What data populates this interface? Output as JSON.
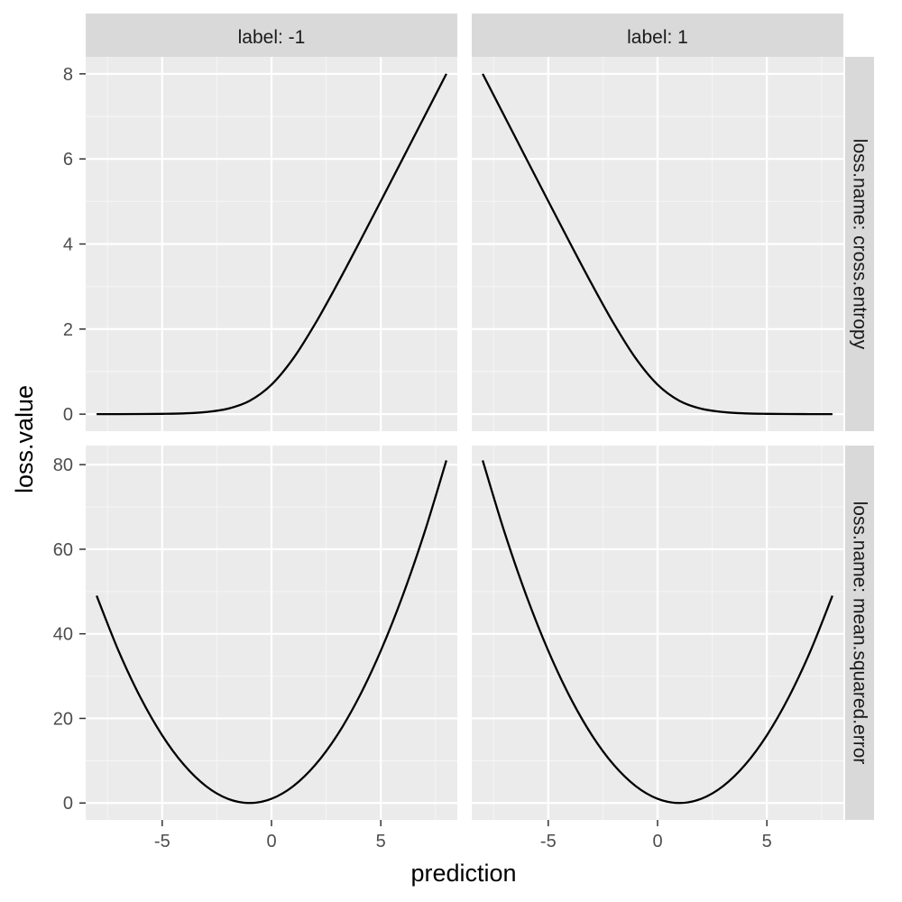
{
  "chart_data": {
    "type": "line",
    "xlabel": "prediction",
    "ylabel": "loss.value",
    "col_facet": {
      "var": "label",
      "strips": [
        "label: -1",
        "label: 1"
      ]
    },
    "row_facet": {
      "var": "loss.name",
      "strips": [
        "loss.name: cross.entropy",
        "loss.name: mean.squared.error"
      ]
    },
    "xlim": [
      -8.5,
      8.5
    ],
    "x_ticks": [
      -5,
      0,
      5
    ],
    "x_tick_labels": [
      "-5",
      "0",
      "5"
    ],
    "grid": true,
    "line_color": "#000000",
    "rows": [
      {
        "ylim": [
          -0.4,
          8.4
        ],
        "y_ticks": [
          0,
          2,
          4,
          6,
          8
        ],
        "y_tick_labels": [
          "0",
          "2",
          "4",
          "6",
          "8"
        ]
      },
      {
        "ylim": [
          -4.0,
          84.5
        ],
        "y_ticks": [
          0,
          20,
          40,
          60,
          80
        ],
        "y_tick_labels": [
          "0",
          "20",
          "40",
          "60",
          "80"
        ]
      }
    ],
    "panels": [
      {
        "row": 0,
        "col": 0,
        "x": [
          -8,
          -7,
          -6,
          -5,
          -4,
          -3,
          -2,
          -1,
          0,
          1,
          2,
          3,
          4,
          5,
          6,
          7,
          8
        ],
        "y": [
          0.0003,
          0.0009,
          0.0025,
          0.0067,
          0.018,
          0.049,
          0.127,
          0.313,
          0.693,
          1.313,
          2.127,
          3.049,
          4.018,
          5.007,
          6.002,
          7.001,
          8.0
        ]
      },
      {
        "row": 0,
        "col": 1,
        "x": [
          -8,
          -7,
          -6,
          -5,
          -4,
          -3,
          -2,
          -1,
          0,
          1,
          2,
          3,
          4,
          5,
          6,
          7,
          8
        ],
        "y": [
          8.0,
          7.001,
          6.002,
          5.007,
          4.018,
          3.049,
          2.127,
          1.313,
          0.693,
          0.313,
          0.127,
          0.049,
          0.018,
          0.0067,
          0.0025,
          0.0009,
          0.0003
        ]
      },
      {
        "row": 1,
        "col": 0,
        "x": [
          -8,
          -7,
          -6,
          -5,
          -4,
          -3,
          -2,
          -1,
          0,
          1,
          2,
          3,
          4,
          5,
          6,
          7,
          8
        ],
        "y": [
          49,
          36,
          25,
          16,
          9,
          4,
          1,
          0,
          1,
          4,
          9,
          16,
          25,
          36,
          49,
          64,
          81
        ]
      },
      {
        "row": 1,
        "col": 1,
        "x": [
          -8,
          -7,
          -6,
          -5,
          -4,
          -3,
          -2,
          -1,
          0,
          1,
          2,
          3,
          4,
          5,
          6,
          7,
          8
        ],
        "y": [
          81,
          64,
          49,
          36,
          25,
          16,
          9,
          4,
          1,
          0,
          1,
          4,
          9,
          16,
          25,
          36,
          49
        ]
      }
    ]
  }
}
